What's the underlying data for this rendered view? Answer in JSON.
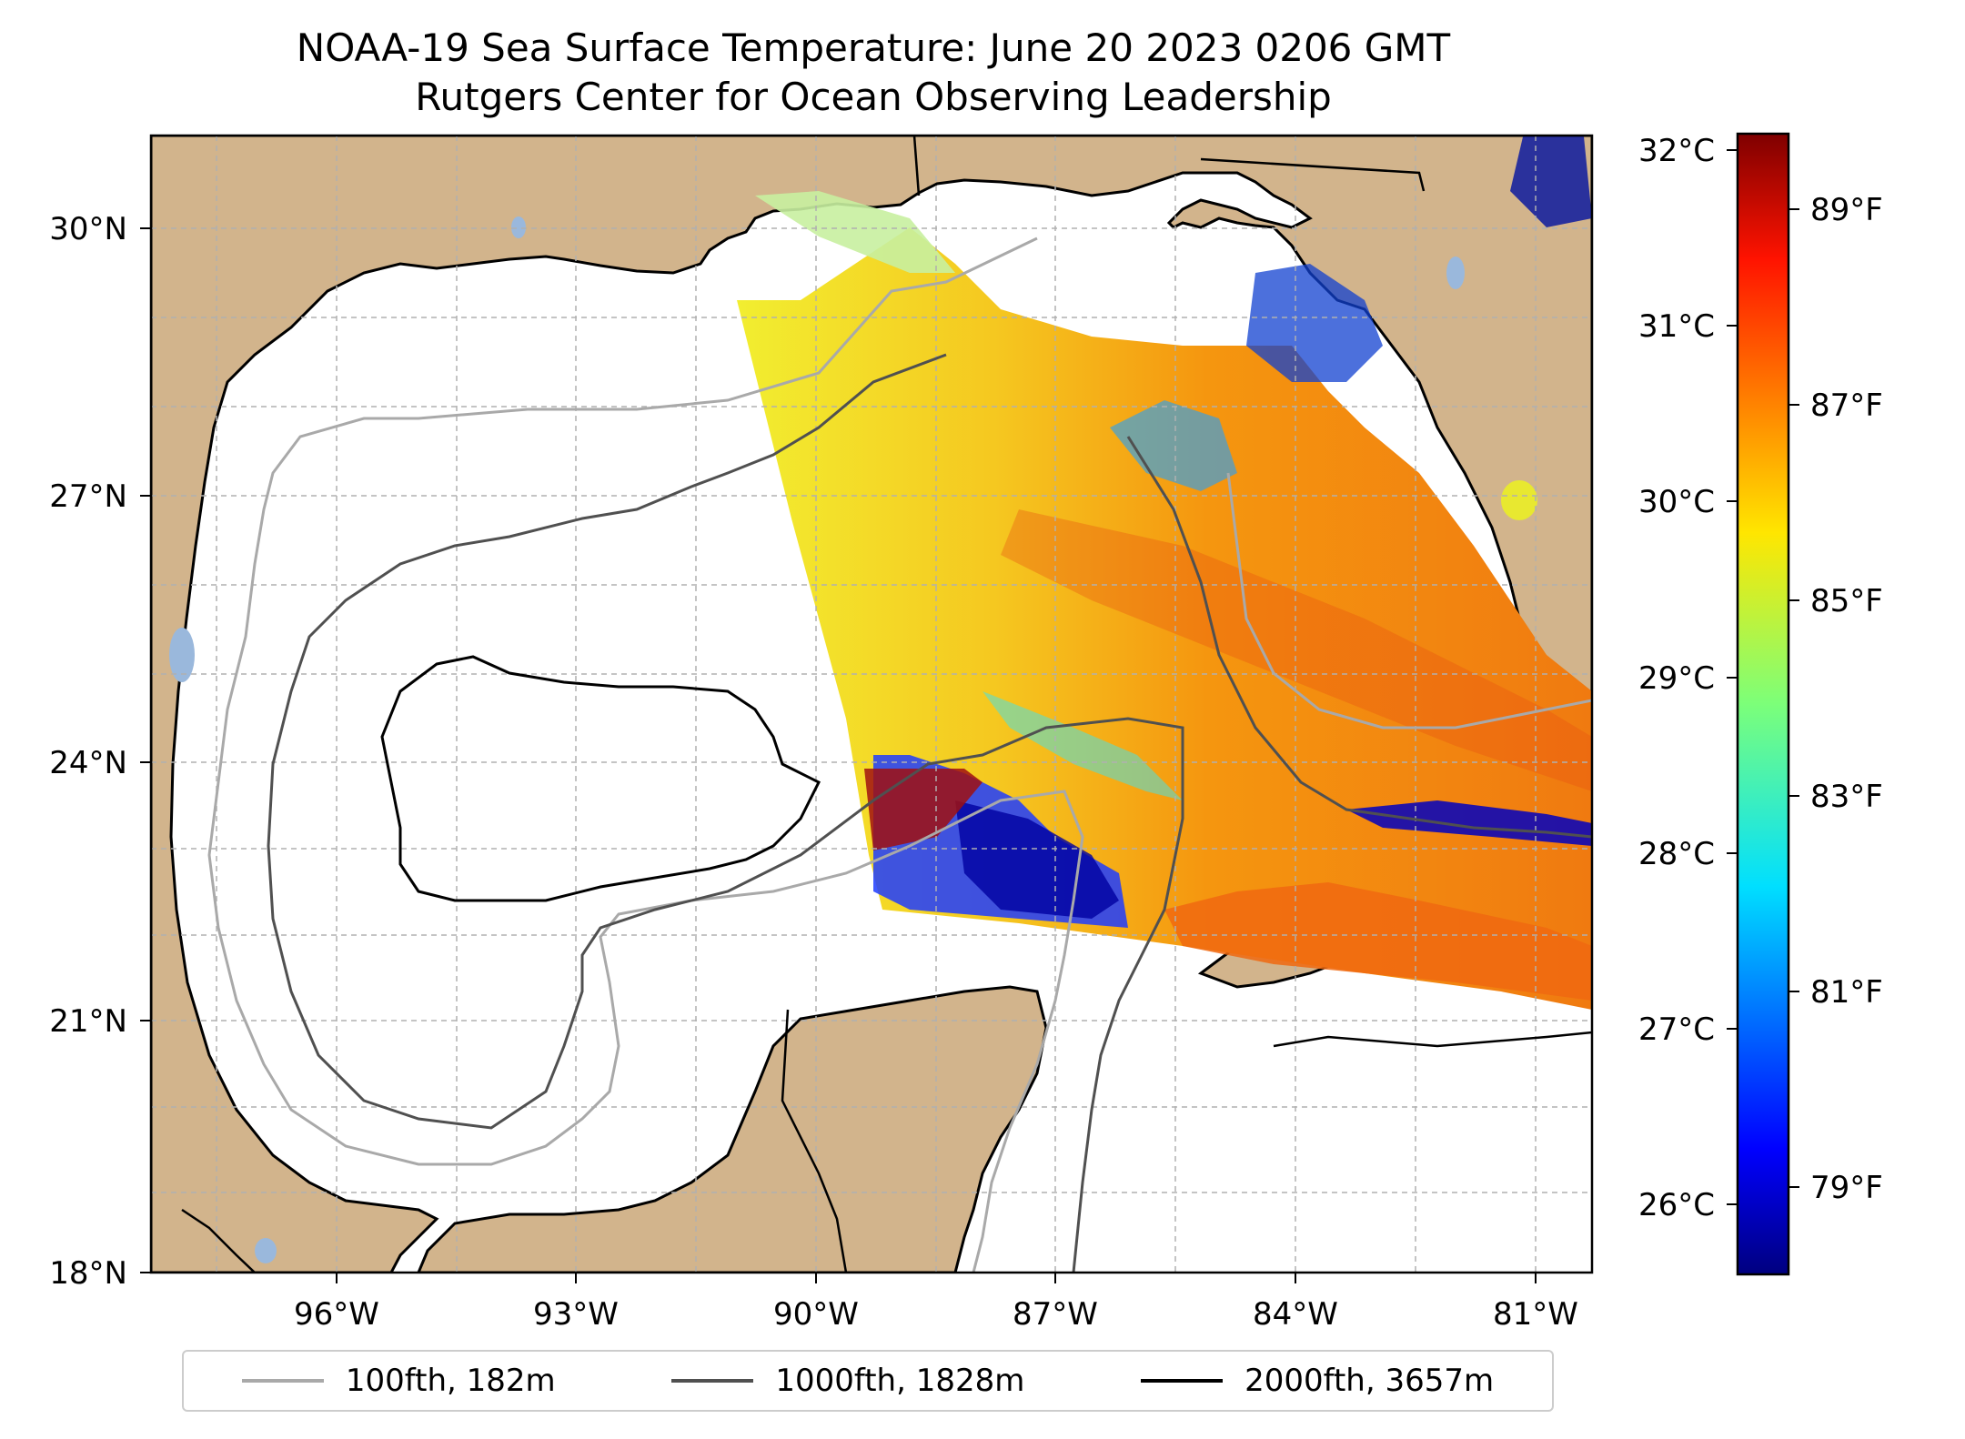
{
  "title": {
    "line1": "NOAA-19 Sea Surface Temperature: June 20 2023 0206 GMT",
    "line2": "Rutgers Center for Ocean Observing Leadership"
  },
  "map": {
    "land_color": "#d2b48c",
    "water_color": "#ffffff",
    "lake_color": "#9ab8dc",
    "lon_ticks": [
      "96°W",
      "93°W",
      "90°W",
      "87°W",
      "84°W",
      "81°W"
    ],
    "lat_ticks": [
      "30°N",
      "27°N",
      "24°N",
      "21°N",
      "18°N"
    ],
    "lon_range": [
      -98.3,
      -80.5
    ],
    "lat_range": [
      18,
      31
    ]
  },
  "colorbar": {
    "colormap": "jet",
    "celsius_ticks": [
      "32°C",
      "31°C",
      "30°C",
      "29°C",
      "28°C",
      "27°C",
      "26°C"
    ],
    "fahrenheit_ticks": [
      "89°F",
      "87°F",
      "85°F",
      "83°F",
      "81°F",
      "79°F"
    ],
    "range_c": [
      25.7,
      32.2
    ]
  },
  "legend": {
    "items": [
      {
        "label": "100fth, 182m",
        "color": "#a9a9a9"
      },
      {
        "label": "1000fth, 1828m",
        "color": "#505050"
      },
      {
        "label": "2000fth, 3657m",
        "color": "#000000"
      }
    ]
  }
}
